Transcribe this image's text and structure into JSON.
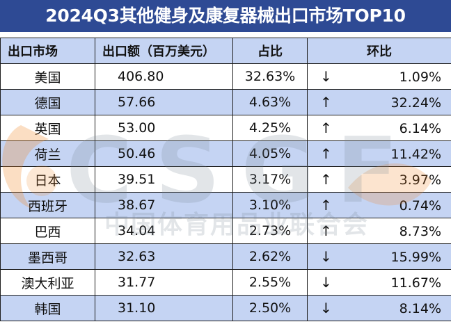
{
  "title": "2024Q3其他健身及康复器械出口市场TOP10",
  "headers": [
    "出口市场",
    "出口额（百万美元）",
    "占比",
    "环比"
  ],
  "rows": [
    {
      "market": "美国",
      "value": "406.80",
      "share": "32.63%",
      "direction": "down",
      "arrow": "↓",
      "mom": "1.09%"
    },
    {
      "market": "德国",
      "value": "57.66",
      "share": "4.63%",
      "direction": "up",
      "arrow": "↑",
      "mom": "32.24%"
    },
    {
      "market": "英国",
      "value": "53.00",
      "share": "4.25%",
      "direction": "up",
      "arrow": "↑",
      "mom": "6.14%"
    },
    {
      "market": "荷兰",
      "value": "50.46",
      "share": "4.05%",
      "direction": "up",
      "arrow": "↑",
      "mom": "11.42%"
    },
    {
      "market": "日本",
      "value": "39.51",
      "share": "3.17%",
      "direction": "up",
      "arrow": "↑",
      "mom": "3.97%"
    },
    {
      "market": "西班牙",
      "value": "38.67",
      "share": "3.10%",
      "direction": "up",
      "arrow": "↑",
      "mom": "0.74%"
    },
    {
      "market": "巴西",
      "value": "34.04",
      "share": "2.73%",
      "direction": "up",
      "arrow": "↑",
      "mom": "8.73%"
    },
    {
      "market": "墨西哥",
      "value": "32.63",
      "share": "2.62%",
      "direction": "down",
      "arrow": "↓",
      "mom": "15.99%"
    },
    {
      "market": "澳大利亚",
      "value": "31.77",
      "share": "2.55%",
      "direction": "down",
      "arrow": "↓",
      "mom": "11.67%"
    },
    {
      "market": "韩国",
      "value": "31.10",
      "share": "2.50%",
      "direction": "down",
      "arrow": "↓",
      "mom": "8.14%"
    }
  ],
  "watermark": {
    "letters": "CSGF",
    "org": "中国体育用品业联合会"
  },
  "colors": {
    "title_bg": "#2e4a94",
    "stripe": "#c5d4f3",
    "logo_orange": "#f08a2a"
  }
}
